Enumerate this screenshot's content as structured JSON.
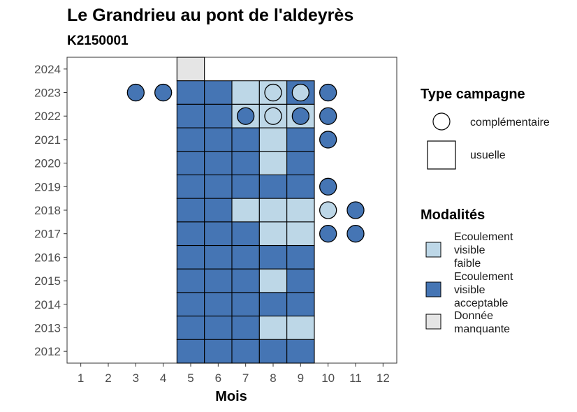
{
  "chart_data": {
    "type": "heatmap",
    "title": "Le Grandrieu au pont de l'aldeyrès",
    "subtitle": "K2150001",
    "xlabel": "Mois",
    "ylabel": "",
    "x_ticks": [
      1,
      2,
      3,
      4,
      5,
      6,
      7,
      8,
      9,
      10,
      11,
      12
    ],
    "y_ticks": [
      2012,
      2013,
      2014,
      2015,
      2016,
      2017,
      2018,
      2019,
      2020,
      2021,
      2022,
      2023,
      2024
    ],
    "xlim": [
      0.5,
      12.5
    ],
    "ylim": [
      2011.5,
      2024.5
    ],
    "colors": {
      "Ecoulement visible faible": "#bdd7e7",
      "Ecoulement visible acceptable": "#4575b4",
      "Donnée manquante": "#e5e5e5"
    },
    "usuelle": [
      {
        "year": 2024,
        "month": 5,
        "modalite": "Donnée manquante"
      },
      {
        "year": 2023,
        "month": 5,
        "modalite": "Ecoulement visible acceptable"
      },
      {
        "year": 2023,
        "month": 6,
        "modalite": "Ecoulement visible acceptable"
      },
      {
        "year": 2023,
        "month": 7,
        "modalite": "Ecoulement visible faible"
      },
      {
        "year": 2023,
        "month": 8,
        "modalite": "Ecoulement visible faible"
      },
      {
        "year": 2023,
        "month": 9,
        "modalite": "Ecoulement visible acceptable"
      },
      {
        "year": 2022,
        "month": 5,
        "modalite": "Ecoulement visible acceptable"
      },
      {
        "year": 2022,
        "month": 6,
        "modalite": "Ecoulement visible acceptable"
      },
      {
        "year": 2022,
        "month": 7,
        "modalite": "Ecoulement visible faible"
      },
      {
        "year": 2022,
        "month": 8,
        "modalite": "Ecoulement visible faible"
      },
      {
        "year": 2022,
        "month": 9,
        "modalite": "Ecoulement visible faible"
      },
      {
        "year": 2021,
        "month": 5,
        "modalite": "Ecoulement visible acceptable"
      },
      {
        "year": 2021,
        "month": 6,
        "modalite": "Ecoulement visible acceptable"
      },
      {
        "year": 2021,
        "month": 7,
        "modalite": "Ecoulement visible acceptable"
      },
      {
        "year": 2021,
        "month": 8,
        "modalite": "Ecoulement visible faible"
      },
      {
        "year": 2021,
        "month": 9,
        "modalite": "Ecoulement visible acceptable"
      },
      {
        "year": 2020,
        "month": 5,
        "modalite": "Ecoulement visible acceptable"
      },
      {
        "year": 2020,
        "month": 6,
        "modalite": "Ecoulement visible acceptable"
      },
      {
        "year": 2020,
        "month": 7,
        "modalite": "Ecoulement visible acceptable"
      },
      {
        "year": 2020,
        "month": 8,
        "modalite": "Ecoulement visible faible"
      },
      {
        "year": 2020,
        "month": 9,
        "modalite": "Ecoulement visible acceptable"
      },
      {
        "year": 2019,
        "month": 5,
        "modalite": "Ecoulement visible acceptable"
      },
      {
        "year": 2019,
        "month": 6,
        "modalite": "Ecoulement visible acceptable"
      },
      {
        "year": 2019,
        "month": 7,
        "modalite": "Ecoulement visible acceptable"
      },
      {
        "year": 2019,
        "month": 8,
        "modalite": "Ecoulement visible acceptable"
      },
      {
        "year": 2019,
        "month": 9,
        "modalite": "Ecoulement visible acceptable"
      },
      {
        "year": 2018,
        "month": 5,
        "modalite": "Ecoulement visible acceptable"
      },
      {
        "year": 2018,
        "month": 6,
        "modalite": "Ecoulement visible acceptable"
      },
      {
        "year": 2018,
        "month": 7,
        "modalite": "Ecoulement visible faible"
      },
      {
        "year": 2018,
        "month": 8,
        "modalite": "Ecoulement visible faible"
      },
      {
        "year": 2018,
        "month": 9,
        "modalite": "Ecoulement visible faible"
      },
      {
        "year": 2017,
        "month": 5,
        "modalite": "Ecoulement visible acceptable"
      },
      {
        "year": 2017,
        "month": 6,
        "modalite": "Ecoulement visible acceptable"
      },
      {
        "year": 2017,
        "month": 7,
        "modalite": "Ecoulement visible acceptable"
      },
      {
        "year": 2017,
        "month": 8,
        "modalite": "Ecoulement visible faible"
      },
      {
        "year": 2017,
        "month": 9,
        "modalite": "Ecoulement visible faible"
      },
      {
        "year": 2016,
        "month": 5,
        "modalite": "Ecoulement visible acceptable"
      },
      {
        "year": 2016,
        "month": 6,
        "modalite": "Ecoulement visible acceptable"
      },
      {
        "year": 2016,
        "month": 7,
        "modalite": "Ecoulement visible acceptable"
      },
      {
        "year": 2016,
        "month": 8,
        "modalite": "Ecoulement visible acceptable"
      },
      {
        "year": 2016,
        "month": 9,
        "modalite": "Ecoulement visible acceptable"
      },
      {
        "year": 2015,
        "month": 5,
        "modalite": "Ecoulement visible acceptable"
      },
      {
        "year": 2015,
        "month": 6,
        "modalite": "Ecoulement visible acceptable"
      },
      {
        "year": 2015,
        "month": 7,
        "modalite": "Ecoulement visible acceptable"
      },
      {
        "year": 2015,
        "month": 8,
        "modalite": "Ecoulement visible faible"
      },
      {
        "year": 2015,
        "month": 9,
        "modalite": "Ecoulement visible acceptable"
      },
      {
        "year": 2014,
        "month": 5,
        "modalite": "Ecoulement visible acceptable"
      },
      {
        "year": 2014,
        "month": 6,
        "modalite": "Ecoulement visible acceptable"
      },
      {
        "year": 2014,
        "month": 7,
        "modalite": "Ecoulement visible acceptable"
      },
      {
        "year": 2014,
        "month": 8,
        "modalite": "Ecoulement visible acceptable"
      },
      {
        "year": 2014,
        "month": 9,
        "modalite": "Ecoulement visible acceptable"
      },
      {
        "year": 2013,
        "month": 5,
        "modalite": "Ecoulement visible acceptable"
      },
      {
        "year": 2013,
        "month": 6,
        "modalite": "Ecoulement visible acceptable"
      },
      {
        "year": 2013,
        "month": 7,
        "modalite": "Ecoulement visible acceptable"
      },
      {
        "year": 2013,
        "month": 8,
        "modalite": "Ecoulement visible faible"
      },
      {
        "year": 2013,
        "month": 9,
        "modalite": "Ecoulement visible faible"
      },
      {
        "year": 2012,
        "month": 5,
        "modalite": "Ecoulement visible acceptable"
      },
      {
        "year": 2012,
        "month": 6,
        "modalite": "Ecoulement visible acceptable"
      },
      {
        "year": 2012,
        "month": 7,
        "modalite": "Ecoulement visible acceptable"
      },
      {
        "year": 2012,
        "month": 8,
        "modalite": "Ecoulement visible acceptable"
      },
      {
        "year": 2012,
        "month": 9,
        "modalite": "Ecoulement visible acceptable"
      }
    ],
    "complementaire": [
      {
        "year": 2023,
        "month": 3,
        "modalite": "Ecoulement visible acceptable"
      },
      {
        "year": 2023,
        "month": 4,
        "modalite": "Ecoulement visible acceptable"
      },
      {
        "year": 2023,
        "month": 8,
        "modalite": "Ecoulement visible faible"
      },
      {
        "year": 2023,
        "month": 9,
        "modalite": "Ecoulement visible faible"
      },
      {
        "year": 2023,
        "month": 10,
        "modalite": "Ecoulement visible acceptable"
      },
      {
        "year": 2022,
        "month": 7,
        "modalite": "Ecoulement visible acceptable"
      },
      {
        "year": 2022,
        "month": 8,
        "modalite": "Ecoulement visible faible"
      },
      {
        "year": 2022,
        "month": 9,
        "modalite": "Ecoulement visible acceptable"
      },
      {
        "year": 2022,
        "month": 10,
        "modalite": "Ecoulement visible acceptable"
      },
      {
        "year": 2021,
        "month": 10,
        "modalite": "Ecoulement visible acceptable"
      },
      {
        "year": 2019,
        "month": 10,
        "modalite": "Ecoulement visible acceptable"
      },
      {
        "year": 2018,
        "month": 10,
        "modalite": "Ecoulement visible faible"
      },
      {
        "year": 2018,
        "month": 11,
        "modalite": "Ecoulement visible acceptable"
      },
      {
        "year": 2017,
        "month": 10,
        "modalite": "Ecoulement visible acceptable"
      },
      {
        "year": 2017,
        "month": 11,
        "modalite": "Ecoulement visible acceptable"
      }
    ],
    "legend": {
      "placement": "right",
      "type_title": "Type campagne",
      "type_items": [
        {
          "shape": "circle",
          "label": "complémentaire"
        },
        {
          "shape": "square",
          "label": "usuelle"
        }
      ],
      "modalites_title": "Modalités",
      "modalites_items": [
        {
          "label_lines": [
            "Ecoulement",
            "visible",
            "faible"
          ],
          "color": "#bdd7e7"
        },
        {
          "label_lines": [
            "Ecoulement",
            "visible",
            "acceptable"
          ],
          "color": "#4575b4"
        },
        {
          "label_lines": [
            "Donnée",
            "manquante"
          ],
          "color": "#e5e5e5"
        }
      ]
    }
  }
}
